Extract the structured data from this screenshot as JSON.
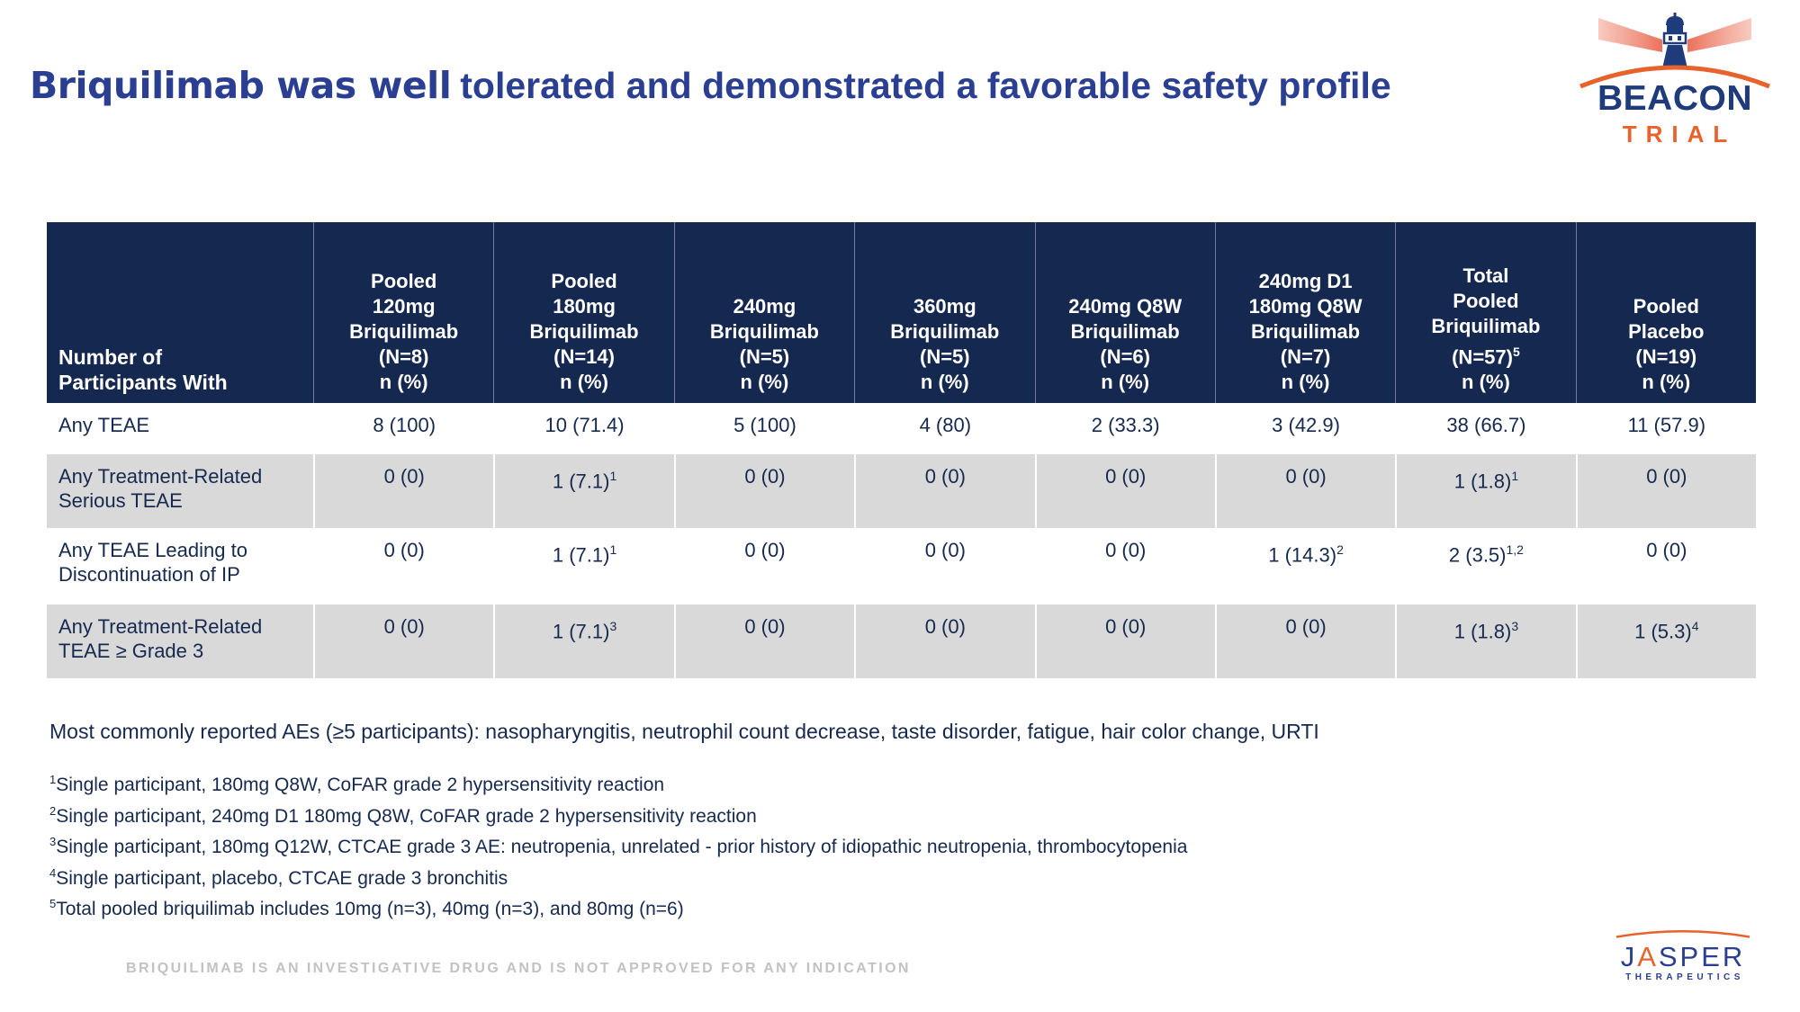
{
  "title": {
    "part1": "Briquilimab was well",
    "part2": "tolerated and demonstrated a favorable safety profile"
  },
  "beacon_logo": {
    "name": "BEACON",
    "subname": "TRIAL"
  },
  "table": {
    "header": [
      {
        "lines": [
          "Number of",
          "Participants With"
        ]
      },
      {
        "lines": [
          "Pooled",
          "120mg",
          "Briquilimab",
          "(N=8)",
          "n (%)"
        ]
      },
      {
        "lines": [
          "Pooled",
          "180mg",
          "Briquilimab",
          "(N=14)",
          "n (%)"
        ]
      },
      {
        "lines": [
          "240mg",
          "Briquilimab",
          "(N=5)",
          "n (%)"
        ]
      },
      {
        "lines": [
          "360mg",
          "Briquilimab",
          "(N=5)",
          "n (%)"
        ]
      },
      {
        "lines": [
          "240mg Q8W",
          "Briquilimab",
          "(N=6)",
          "n (%)"
        ]
      },
      {
        "lines": [
          "240mg D1",
          "180mg Q8W",
          "Briquilimab",
          "(N=7)",
          "n (%)"
        ]
      },
      {
        "lines": [
          "Total",
          "Pooled",
          "Briquilimab",
          {
            "t": "(N=57)",
            "sup": "5"
          },
          "n (%)"
        ]
      },
      {
        "lines": [
          "Pooled",
          "Placebo",
          "(N=19)",
          "n (%)"
        ]
      }
    ],
    "rows": [
      {
        "label": "Any TEAE",
        "shaded": false,
        "values": [
          "8 (100)",
          "10 (71.4)",
          "5 (100)",
          "4 (80)",
          "2 (33.3)",
          "3 (42.9)",
          "38 (66.7)",
          "11 (57.9)"
        ]
      },
      {
        "label": "Any Treatment-Related Serious TEAE",
        "shaded": true,
        "values": [
          "0 (0)",
          {
            "t": "1 (7.1)",
            "sup": "1"
          },
          "0 (0)",
          "0 (0)",
          "0 (0)",
          "0 (0)",
          {
            "t": "1 (1.8)",
            "sup": "1"
          },
          "0 (0)"
        ]
      },
      {
        "label": "Any TEAE Leading to Discontinuation of IP",
        "shaded": false,
        "values": [
          "0 (0)",
          {
            "t": "1 (7.1)",
            "sup": "1"
          },
          "0 (0)",
          "0 (0)",
          "0 (0)",
          {
            "t": "1 (14.3)",
            "sup": "2"
          },
          {
            "t": "2 (3.5)",
            "sup": "1,2"
          },
          "0 (0)"
        ]
      },
      {
        "label": "Any Treatment-Related TEAE ≥ Grade 3",
        "shaded": true,
        "values": [
          "0 (0)",
          {
            "t": "1 (7.1)",
            "sup": "3"
          },
          "0 (0)",
          "0 (0)",
          "0 (0)",
          "0 (0)",
          {
            "t": "1 (1.8)",
            "sup": "3"
          },
          {
            "t": "1 (5.3)",
            "sup": "4"
          }
        ]
      }
    ]
  },
  "notes": {
    "common_aes": "Most commonly reported AEs (≥5 participants): nasopharyngitis, neutrophil count decrease, taste disorder, fatigue, hair color change, URTI",
    "footnotes": [
      {
        "sup": "1",
        "text": "Single participant, 180mg Q8W, CoFAR grade 2 hypersensitivity reaction"
      },
      {
        "sup": "2",
        "text": "Single participant, 240mg D1 180mg Q8W, CoFAR grade 2 hypersensitivity reaction"
      },
      {
        "sup": "3",
        "text": "Single participant, 180mg Q12W, CTCAE grade 3 AE: neutropenia, unrelated - prior history of idiopathic neutropenia, thrombocytopenia"
      },
      {
        "sup": "4",
        "text": "Single participant, placebo, CTCAE grade 3 bronchitis"
      },
      {
        "sup": "5",
        "text": "Total pooled briquilimab includes 10mg (n=3), 40mg (n=3), and 80mg (n=6)"
      }
    ]
  },
  "footer": {
    "disclaimer": "BRIQUILIMAB IS AN INVESTIGATIVE DRUG AND IS NOT APPROVED FOR ANY INDICATION"
  },
  "jasper_logo": {
    "j": "J",
    "a": "A",
    "sper": "SPER",
    "subname": "THERAPEUTICS"
  },
  "colors": {
    "title_blue": "#2B3F92",
    "header_navy": "#142850",
    "body_navy": "#16294E",
    "shaded_row_gray": "#D9D9D9",
    "accent_orange": "#E8622C",
    "beacon_navy": "#1E3C7B",
    "beam_red": "#EF8270",
    "disclaimer_gray": "#C2C2C2"
  }
}
